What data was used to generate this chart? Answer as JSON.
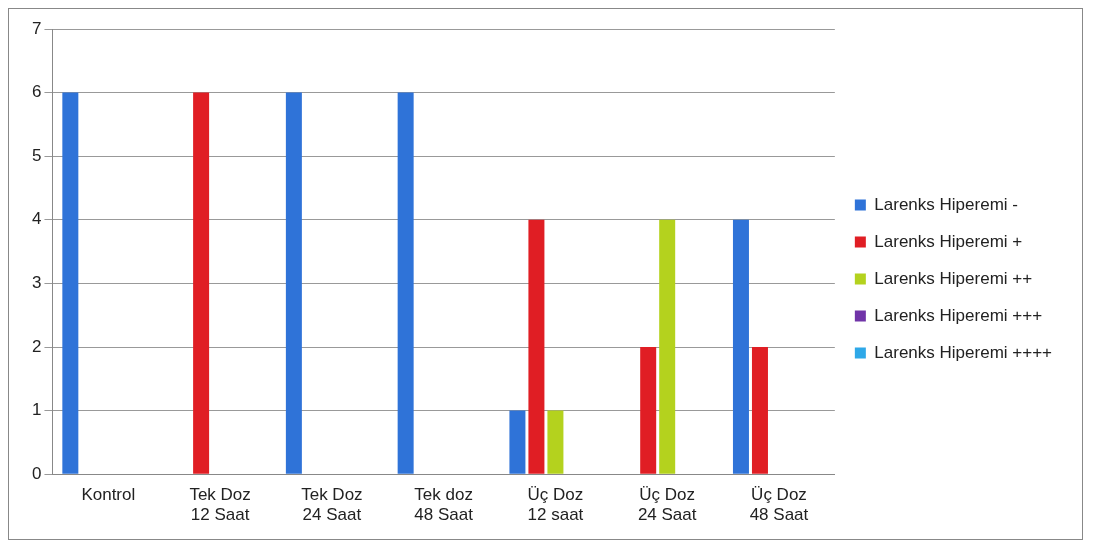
{
  "chart_data": {
    "type": "bar",
    "categories": [
      "Kontrol",
      "Tek Doz 12 Saat",
      "Tek Doz 24 Saat",
      "Tek doz 48 Saat",
      "Üç Doz 12 saat",
      "Üç Doz 24 Saat",
      "Üç Doz 48 Saat"
    ],
    "series": [
      {
        "name": "Larenks Hiperemi -",
        "color": "#2f73d8",
        "values": [
          6,
          0,
          6,
          6,
          1,
          0,
          4
        ]
      },
      {
        "name": "Larenks Hiperemi +",
        "color": "#e01e24",
        "values": [
          0,
          6,
          0,
          0,
          4,
          2,
          2
        ]
      },
      {
        "name": "Larenks Hiperemi ++",
        "color": "#b4d21e",
        "values": [
          0,
          0,
          0,
          0,
          1,
          4,
          0
        ]
      },
      {
        "name": "Larenks Hiperemi +++",
        "color": "#7034a8",
        "values": [
          0,
          0,
          0,
          0,
          0,
          0,
          0
        ]
      },
      {
        "name": "Larenks Hiperemi ++++",
        "color": "#2ea8e8",
        "values": [
          0,
          0,
          0,
          0,
          0,
          0,
          0
        ]
      }
    ],
    "ylim": [
      0,
      7
    ],
    "yticks": [
      0,
      1,
      2,
      3,
      4,
      5,
      6,
      7
    ],
    "grid": "y",
    "legend": "right"
  }
}
